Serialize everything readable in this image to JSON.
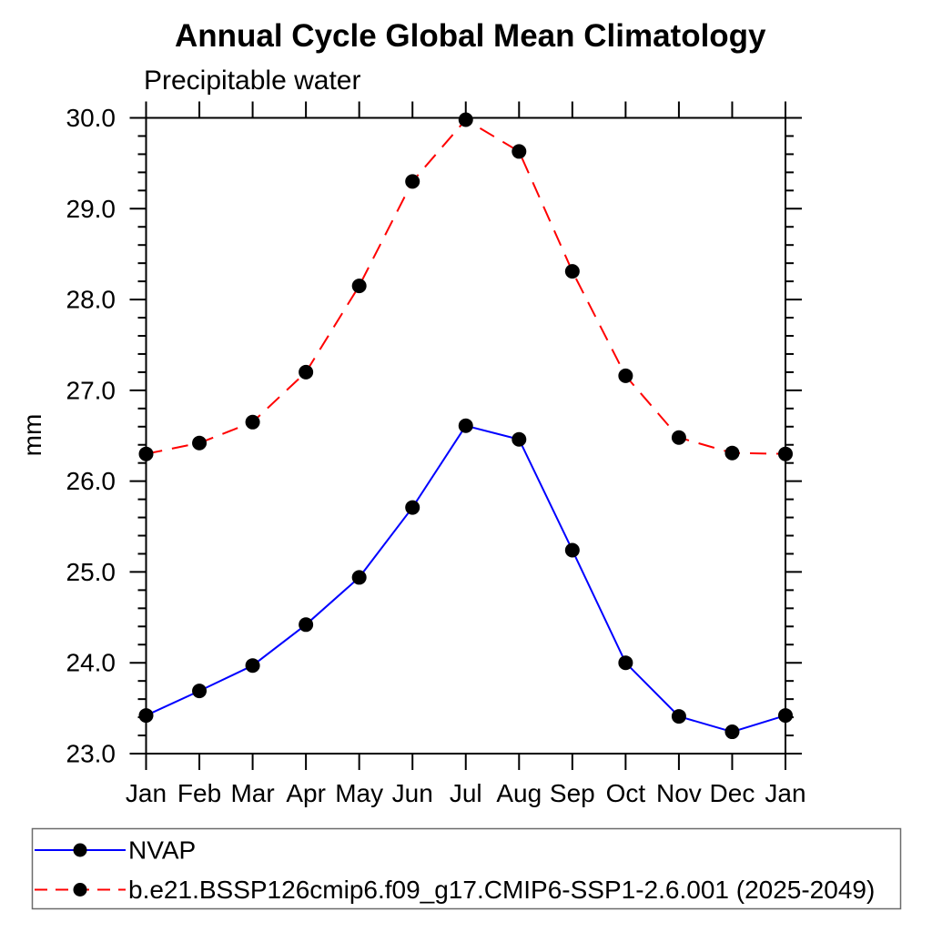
{
  "page": {
    "background": "#ffffff"
  },
  "chart_data": {
    "type": "line",
    "title": "Annual Cycle Global Mean Climatology",
    "subtitle": "Precipitable water",
    "xlabel": "",
    "ylabel": "mm",
    "categories": [
      "Jan",
      "Feb",
      "Mar",
      "Apr",
      "May",
      "Jun",
      "Jul",
      "Aug",
      "Sep",
      "Oct",
      "Nov",
      "Dec",
      "Jan"
    ],
    "ylim": [
      23.0,
      30.0
    ],
    "ytick_major_step": 1.0,
    "ytick_minor_step": 0.2,
    "ytick_label_format": "one_decimal",
    "grid": false,
    "frame": "box-with-outward-ticks",
    "legend_position": "bottom-left-box",
    "series": [
      {
        "name": "NVAP",
        "line_color": "#0000ff",
        "line_style": "solid",
        "marker": "filled-circle",
        "marker_color": "#000000",
        "values": [
          23.42,
          23.69,
          23.97,
          24.42,
          24.94,
          25.71,
          26.61,
          26.46,
          25.24,
          24.0,
          23.41,
          23.24,
          23.42
        ]
      },
      {
        "name": "b.e21.BSSP126cmip6.f09_g17.CMIP6-SSP1-2.6.001 (2025-2049)",
        "line_color": "#ff0000",
        "line_style": "dashed",
        "marker": "filled-circle",
        "marker_color": "#000000",
        "values": [
          26.3,
          26.42,
          26.65,
          27.2,
          28.15,
          29.3,
          29.98,
          29.63,
          28.31,
          27.16,
          26.48,
          26.31,
          26.3
        ]
      }
    ],
    "colors": {
      "axis": "#000000",
      "text": "#000000",
      "legend_border": "#6b6b6b"
    }
  }
}
